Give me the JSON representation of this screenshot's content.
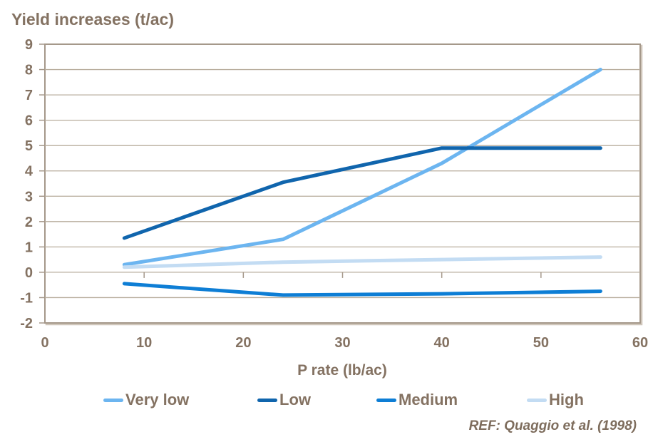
{
  "title": "Yield increases (t/ac)",
  "footer": {
    "ref": "REF: Quaggio et al. (1998)"
  },
  "colors": {
    "text": "#847262",
    "grid": "#b8ad9d",
    "plot_border": "#a5988a",
    "plot_border_shadow": "#cfc6ba",
    "background": "#ffffff"
  },
  "chart_data": {
    "type": "line",
    "title": "Yield increases (t/ac)",
    "xlabel": "P rate (lb/ac)",
    "ylabel": "Yield increases (t/ac)",
    "xlim": [
      0,
      60
    ],
    "ylim": [
      -2,
      9
    ],
    "xticks": [
      0,
      10,
      20,
      30,
      40,
      50,
      60
    ],
    "yticks": [
      -2,
      -1,
      0,
      1,
      2,
      3,
      4,
      5,
      6,
      7,
      8,
      9
    ],
    "grid": true,
    "legend_position": "bottom",
    "x": [
      8,
      24,
      40,
      56
    ],
    "series": [
      {
        "name": "Very low",
        "color": "#6cb5f0",
        "values": [
          0.3,
          1.3,
          4.3,
          8.0
        ]
      },
      {
        "name": "Low",
        "color": "#1065ad",
        "values": [
          1.35,
          3.55,
          4.9,
          4.9
        ]
      },
      {
        "name": "Medium",
        "color": "#0e7ed5",
        "values": [
          -0.45,
          -0.9,
          -0.85,
          -0.75
        ]
      },
      {
        "name": "High",
        "color": "#c3dcf3",
        "values": [
          0.2,
          0.4,
          0.5,
          0.6
        ]
      }
    ]
  }
}
